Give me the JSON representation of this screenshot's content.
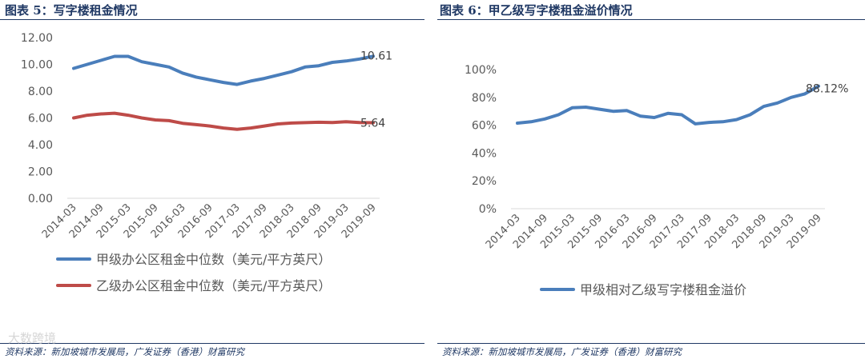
{
  "left": {
    "title": "图表 5：写字楼租金情况",
    "source": "资料来源：新加坡城市发展局，广发证券（香港）财富研究",
    "end_labels": [
      "10.61",
      "5.64"
    ]
  },
  "right": {
    "title": "图表 6：甲乙级写字楼租金溢价情况",
    "source": "资料来源：新加坡城市发展局，广发证券（香港）财富研究",
    "end_labels": [
      "88.12%"
    ]
  },
  "watermark": "大数跨境",
  "colors": {
    "grade_a": "#4a7ebb",
    "grade_b": "#be4b48",
    "premium": "#4a7ebb",
    "axis": "#d9d9d9",
    "title": "#1f3864"
  },
  "chart_data": [
    {
      "type": "line",
      "title": "写字楼租金情况",
      "x": [
        "2014-03",
        "2014-06",
        "2014-09",
        "2014-12",
        "2015-03",
        "2015-06",
        "2015-09",
        "2015-12",
        "2016-03",
        "2016-06",
        "2016-09",
        "2016-12",
        "2017-03",
        "2017-06",
        "2017-09",
        "2017-12",
        "2018-03",
        "2018-06",
        "2018-09",
        "2018-12",
        "2019-03",
        "2019-06",
        "2019-09"
      ],
      "x_tick_labels": [
        "2014-03",
        "2014-09",
        "2015-03",
        "2015-09",
        "2016-03",
        "2016-09",
        "2017-03",
        "2017-09",
        "2018-03",
        "2018-09",
        "2019-03",
        "2019-09"
      ],
      "y_tick_labels": [
        "0.00",
        "2.00",
        "4.00",
        "6.00",
        "8.00",
        "10.00",
        "12.00"
      ],
      "ylim": [
        0,
        12
      ],
      "grid": false,
      "legend_position": "bottom",
      "series": [
        {
          "name": "甲级办公区租金中位数（美元/平方英尺）",
          "values": [
            9.7,
            10.0,
            10.3,
            10.6,
            10.6,
            10.2,
            10.0,
            9.8,
            9.35,
            9.05,
            8.85,
            8.65,
            8.5,
            8.75,
            8.95,
            9.2,
            9.45,
            9.8,
            9.9,
            10.15,
            10.25,
            10.4,
            10.61
          ]
        },
        {
          "name": "乙级办公区租金中位数（美元/平方英尺）",
          "values": [
            6.0,
            6.2,
            6.3,
            6.35,
            6.2,
            6.0,
            5.85,
            5.8,
            5.6,
            5.5,
            5.4,
            5.25,
            5.15,
            5.25,
            5.4,
            5.55,
            5.62,
            5.65,
            5.68,
            5.66,
            5.72,
            5.66,
            5.64
          ]
        }
      ]
    },
    {
      "type": "line",
      "title": "甲乙级写字楼租金溢价情况",
      "x": [
        "2014-03",
        "2014-06",
        "2014-09",
        "2014-12",
        "2015-03",
        "2015-06",
        "2015-09",
        "2015-12",
        "2016-03",
        "2016-06",
        "2016-09",
        "2016-12",
        "2017-03",
        "2017-06",
        "2017-09",
        "2017-12",
        "2018-03",
        "2018-06",
        "2018-09",
        "2018-12",
        "2019-03",
        "2019-06",
        "2019-09"
      ],
      "x_tick_labels": [
        "2014-03",
        "2014-09",
        "2015-03",
        "2015-09",
        "2016-03",
        "2016-09",
        "2017-03",
        "2017-09",
        "2018-03",
        "2018-09",
        "2019-03",
        "2019-09"
      ],
      "y_tick_labels": [
        "0%",
        "20%",
        "40%",
        "60%",
        "80%",
        "100%"
      ],
      "ylim": [
        0,
        100
      ],
      "grid": false,
      "legend_position": "bottom",
      "series": [
        {
          "name": "甲级相对乙级写字楼租金溢价",
          "values": [
            61.5,
            62.5,
            64.5,
            67.5,
            72.5,
            73,
            71.5,
            70,
            70.5,
            66.5,
            65.5,
            68.5,
            67.5,
            61,
            62,
            62.5,
            64,
            67.5,
            73.5,
            76,
            80,
            82.5,
            88.12
          ]
        }
      ]
    }
  ]
}
